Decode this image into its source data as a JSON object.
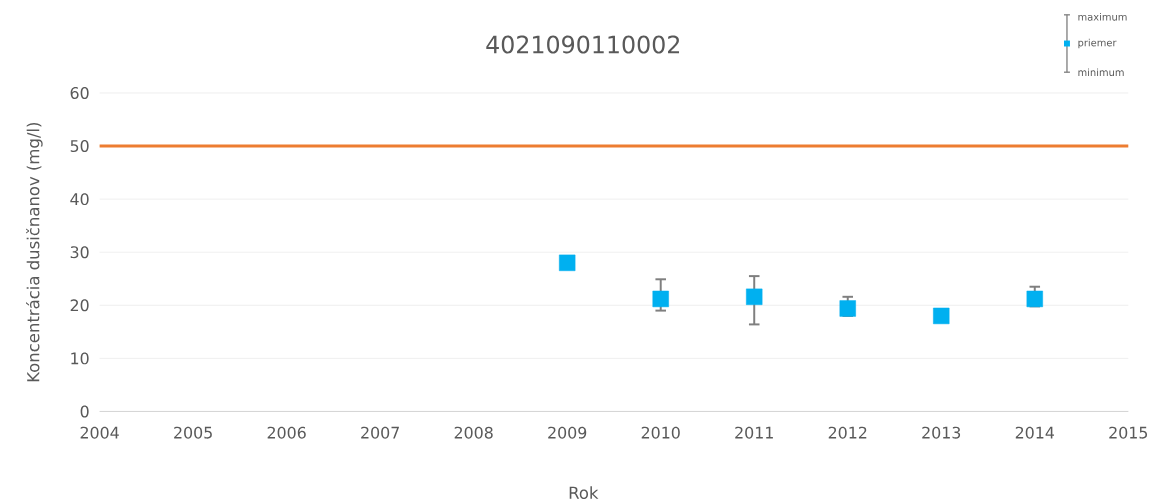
{
  "chart_data": {
    "type": "scatter",
    "title": "4021090110002",
    "xlabel": "Rok",
    "ylabel": "Koncentrácia dusičnanov  (mg/l)",
    "x": [
      2009,
      2010,
      2011,
      2012,
      2013,
      2014
    ],
    "series": [
      {
        "name": "priemer",
        "color": "#00b0f0",
        "values": [
          28.0,
          21.2,
          21.6,
          19.4,
          18.0,
          21.2
        ],
        "errors": [
          null,
          [
            19.0,
            24.9
          ],
          [
            16.4,
            25.5
          ],
          [
            18.0,
            21.6
          ],
          null,
          [
            19.8,
            23.5
          ]
        ]
      }
    ],
    "annotations": [
      "maximum",
      "minimum"
    ],
    "ref_lines": [
      {
        "axis": "y",
        "value": 50,
        "color": "#ed7d31"
      }
    ],
    "marker": "square",
    "legend": "top right",
    "grid": "y",
    "xlim": [
      2004,
      2015
    ],
    "ylim": [
      0,
      60
    ],
    "xticks": [
      2004,
      2005,
      2006,
      2007,
      2008,
      2009,
      2010,
      2011,
      2012,
      2013,
      2014,
      2015
    ],
    "yticks": [
      0,
      10,
      20,
      30,
      40,
      50,
      60
    ]
  }
}
